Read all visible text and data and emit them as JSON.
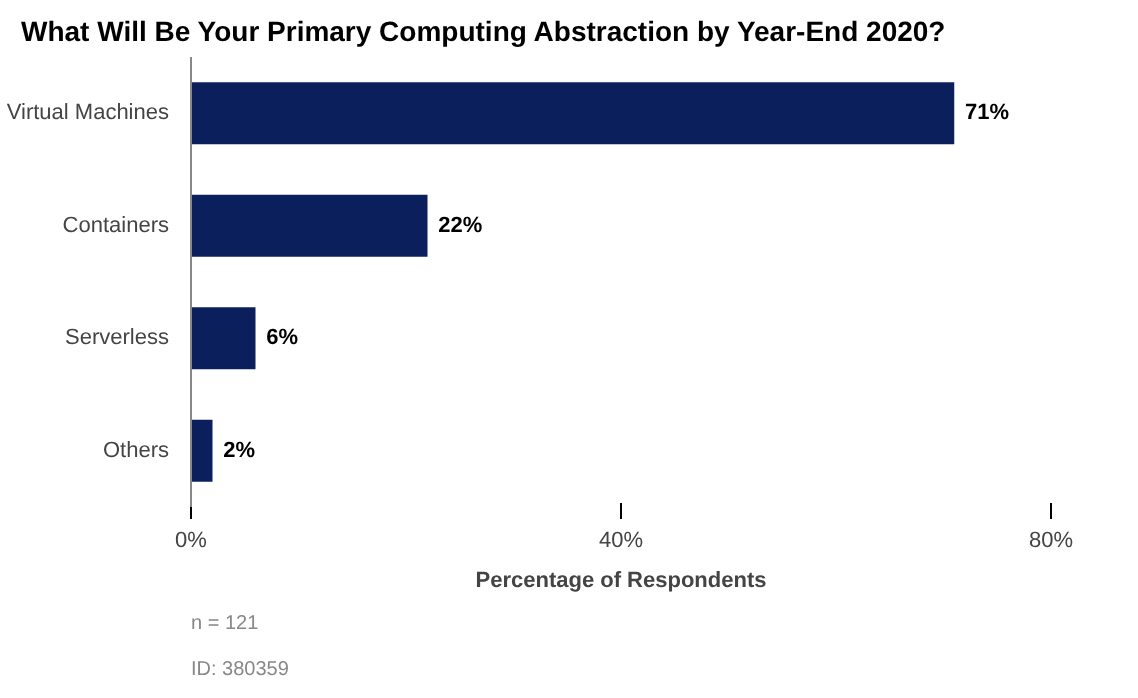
{
  "chart_data": {
    "type": "bar",
    "orientation": "horizontal",
    "title": "What Will Be Your Primary Computing Abstraction by Year-End 2020?",
    "xlabel": "Percentage of Respondents",
    "categories": [
      "Virtual Machines",
      "Containers",
      "Serverless",
      "Others"
    ],
    "values": [
      71,
      22,
      6,
      2
    ],
    "value_labels": [
      "71%",
      "22%",
      "6%",
      "2%"
    ],
    "color": "#0b1f5c",
    "xlim": [
      0,
      80
    ],
    "xticks": [
      {
        "value": 0,
        "label": "0%"
      },
      {
        "value": 40,
        "label": "40%"
      },
      {
        "value": 80,
        "label": "80%"
      }
    ],
    "grid": false,
    "annotations": [
      "n = 121",
      "ID: 380359"
    ]
  }
}
